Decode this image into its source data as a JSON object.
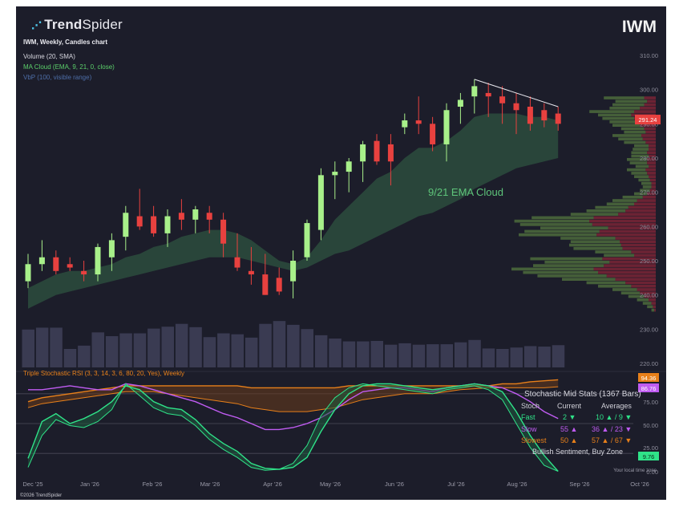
{
  "brand": {
    "name_bold": "Trend",
    "name_light": "Spider"
  },
  "ticker": "IWM",
  "chart_info": "IWM, Weekly, Candles chart",
  "indicators": {
    "volume": "Volume (20, SMA)",
    "ma_cloud": "MA Cloud (EMA, 9, 21, 0, close)",
    "vbp": "VbP (100, visible range)",
    "ma_cloud_label": "9/21 EMA Cloud",
    "stoch_title": "Triple Stochastic RSI (3, 3, 14, 3, 6, 80, 20, Yes), Weekly"
  },
  "colors": {
    "up": "#a8f08a",
    "down": "#e8413f",
    "cloud": "#2b4a3c",
    "fast": "#2fe389",
    "slow": "#c05cf2",
    "slowest": "#e8801a",
    "background": "#1c1d2a"
  },
  "price_axis": {
    "ticks": [
      "310.00",
      "300.00",
      "290.00",
      "280.00",
      "270.00",
      "260.00",
      "250.00",
      "240.00",
      "230.00",
      "220.00"
    ],
    "last_price": "291.24"
  },
  "stoch_axis": {
    "ticks": [
      "75.00",
      "50.00",
      "25.00",
      "0.00"
    ],
    "badges": [
      "94.36",
      "86.76",
      "9.76"
    ]
  },
  "time_axis": [
    "Dec '25",
    "Jan '26",
    "Feb '26",
    "Mar '26",
    "Apr '26",
    "May '26",
    "Jun '26",
    "Jul '26",
    "Aug '26",
    "Sep '26",
    "Oct '26"
  ],
  "stats": {
    "title": "Stochastic Mid Stats (1367 Bars)",
    "headers": [
      "Stoch",
      "Current",
      "Averages"
    ],
    "rows": [
      {
        "name": "Fast",
        "current": "2 ▼",
        "averages": "10 ▲ / 9 ▼"
      },
      {
        "name": "Slow",
        "current": "55 ▲",
        "averages": "36 ▲ / 23 ▼"
      },
      {
        "name": "Slowest",
        "current": "50 ▲",
        "averages": "57 ▲ / 67 ▼"
      }
    ],
    "sentiment": "Bullish Sentiment, Buy Zone"
  },
  "local_time": "Your local time zone",
  "copyright": "©2026 TrendSpider",
  "chart_data": {
    "type": "candlestick",
    "title": "IWM",
    "ylim": [
      218,
      314
    ],
    "candles": [
      {
        "o": 244,
        "h": 252,
        "l": 242,
        "c": 249
      },
      {
        "o": 249,
        "h": 256,
        "l": 247,
        "c": 251
      },
      {
        "o": 251,
        "h": 253,
        "l": 246,
        "c": 247
      },
      {
        "o": 249,
        "h": 251,
        "l": 247,
        "c": 248
      },
      {
        "o": 247,
        "h": 250,
        "l": 244,
        "c": 246
      },
      {
        "o": 246,
        "h": 255,
        "l": 244,
        "c": 254
      },
      {
        "o": 251,
        "h": 258,
        "l": 247,
        "c": 256
      },
      {
        "o": 257,
        "h": 266,
        "l": 253,
        "c": 264
      },
      {
        "o": 263,
        "h": 271,
        "l": 259,
        "c": 260
      },
      {
        "o": 263,
        "h": 266,
        "l": 257,
        "c": 258
      },
      {
        "o": 258,
        "h": 265,
        "l": 254,
        "c": 263
      },
      {
        "o": 264,
        "h": 268,
        "l": 259,
        "c": 262
      },
      {
        "o": 262,
        "h": 266,
        "l": 258,
        "c": 265
      },
      {
        "o": 264,
        "h": 266,
        "l": 258,
        "c": 262
      },
      {
        "o": 262,
        "h": 264,
        "l": 251,
        "c": 255
      },
      {
        "o": 251,
        "h": 258,
        "l": 247,
        "c": 248
      },
      {
        "o": 247,
        "h": 254,
        "l": 243,
        "c": 246
      },
      {
        "o": 246,
        "h": 252,
        "l": 240,
        "c": 240
      },
      {
        "o": 245,
        "h": 248,
        "l": 240,
        "c": 241
      },
      {
        "o": 244,
        "h": 253,
        "l": 239,
        "c": 250
      },
      {
        "o": 251,
        "h": 262,
        "l": 250,
        "c": 261
      },
      {
        "o": 259,
        "h": 277,
        "l": 256,
        "c": 275
      },
      {
        "o": 275,
        "h": 279,
        "l": 268,
        "c": 276
      },
      {
        "o": 276,
        "h": 280,
        "l": 270,
        "c": 279
      },
      {
        "o": 279,
        "h": 285,
        "l": 273,
        "c": 284
      },
      {
        "o": 285,
        "h": 287,
        "l": 278,
        "c": 279
      },
      {
        "o": 284,
        "h": 287,
        "l": 272,
        "c": 279
      },
      {
        "o": 289,
        "h": 293,
        "l": 287,
        "c": 291
      },
      {
        "o": 291,
        "h": 298,
        "l": 287,
        "c": 290
      },
      {
        "o": 290,
        "h": 292,
        "l": 282,
        "c": 284
      },
      {
        "o": 284,
        "h": 296,
        "l": 279,
        "c": 294
      },
      {
        "o": 295,
        "h": 299,
        "l": 290,
        "c": 297
      },
      {
        "o": 298,
        "h": 303,
        "l": 293,
        "c": 301
      },
      {
        "o": 299,
        "h": 302,
        "l": 292,
        "c": 298
      },
      {
        "o": 298,
        "h": 301,
        "l": 290,
        "c": 296
      },
      {
        "o": 296,
        "h": 299,
        "l": 287,
        "c": 294
      },
      {
        "o": 295,
        "h": 298,
        "l": 288,
        "c": 290
      },
      {
        "o": 294,
        "h": 296,
        "l": 289,
        "c": 291
      },
      {
        "o": 293,
        "h": 295,
        "l": 288,
        "c": 290
      }
    ],
    "trendline": [
      [
        32,
        303
      ],
      [
        38,
        295
      ]
    ],
    "ema9": [
      242,
      244,
      246,
      247,
      247,
      248,
      249,
      251,
      252,
      254,
      255,
      257,
      258,
      259,
      259,
      258,
      256,
      253,
      250,
      249,
      251,
      256,
      262,
      266,
      270,
      274,
      276,
      280,
      283,
      283,
      285,
      288,
      292,
      293,
      293,
      293,
      292,
      292,
      291
    ],
    "ema21": [
      236,
      238,
      240,
      241,
      242,
      243,
      244,
      245,
      246,
      247,
      248,
      249,
      250,
      251,
      251,
      251,
      250,
      249,
      248,
      247,
      248,
      250,
      252,
      253,
      255,
      257,
      259,
      261,
      263,
      264,
      266,
      268,
      271,
      273,
      275,
      277,
      278,
      279,
      280
    ],
    "volume": [
      80,
      84,
      84,
      39,
      46,
      74,
      66,
      72,
      72,
      82,
      86,
      92,
      85,
      64,
      72,
      70,
      63,
      92,
      98,
      90,
      81,
      68,
      61,
      55,
      55,
      56,
      48,
      51,
      48,
      49,
      49,
      53,
      58,
      40,
      39,
      42,
      45,
      44,
      47
    ],
    "vbp": [
      {
        "price": 297.5,
        "total": 72,
        "down": 16
      },
      {
        "price": 296.5,
        "total": 56,
        "down": 12
      },
      {
        "price": 295.5,
        "total": 60,
        "down": 16
      },
      {
        "price": 294.5,
        "total": 64,
        "down": 22
      },
      {
        "price": 293.5,
        "total": 92,
        "down": 30
      },
      {
        "price": 292.5,
        "total": 80,
        "down": 34
      },
      {
        "price": 291.5,
        "total": 74,
        "down": 30
      },
      {
        "price": 290.5,
        "total": 64,
        "down": 24
      },
      {
        "price": 289.5,
        "total": 60,
        "down": 22
      },
      {
        "price": 288.5,
        "total": 48,
        "down": 16
      },
      {
        "price": 287.5,
        "total": 44,
        "down": 14
      },
      {
        "price": 286.5,
        "total": 60,
        "down": 20
      },
      {
        "price": 285.5,
        "total": 52,
        "down": 18
      },
      {
        "price": 284.5,
        "total": 44,
        "down": 14
      },
      {
        "price": 283.5,
        "total": 30,
        "down": 10
      },
      {
        "price": 282.5,
        "total": 32,
        "down": 10
      },
      {
        "price": 281.5,
        "total": 34,
        "down": 12
      },
      {
        "price": 280.5,
        "total": 34,
        "down": 10
      },
      {
        "price": 279.5,
        "total": 40,
        "down": 12
      },
      {
        "price": 278.5,
        "total": 36,
        "down": 12
      },
      {
        "price": 277.5,
        "total": 28,
        "down": 10
      },
      {
        "price": 276.5,
        "total": 40,
        "down": 14
      },
      {
        "price": 275.5,
        "total": 34,
        "down": 12
      },
      {
        "price": 274.5,
        "total": 30,
        "down": 10
      },
      {
        "price": 273.5,
        "total": 24,
        "down": 8
      },
      {
        "price": 272.5,
        "total": 20,
        "down": 6
      },
      {
        "price": 271.5,
        "total": 18,
        "down": 6
      },
      {
        "price": 270.5,
        "total": 22,
        "down": 8
      },
      {
        "price": 269.5,
        "total": 30,
        "down": 12
      },
      {
        "price": 268.5,
        "total": 46,
        "down": 18
      },
      {
        "price": 267.5,
        "total": 60,
        "down": 26
      },
      {
        "price": 266.5,
        "total": 68,
        "down": 30
      },
      {
        "price": 265.5,
        "total": 84,
        "down": 38
      },
      {
        "price": 264.5,
        "total": 96,
        "down": 42
      },
      {
        "price": 263.5,
        "total": 118,
        "down": 52
      },
      {
        "price": 262.5,
        "total": 172,
        "down": 86
      },
      {
        "price": 261.5,
        "total": 196,
        "down": 92
      },
      {
        "price": 260.5,
        "total": 188,
        "down": 88
      },
      {
        "price": 259.5,
        "total": 160,
        "down": 66
      },
      {
        "price": 258.5,
        "total": 182,
        "down": 78
      },
      {
        "price": 257.5,
        "total": 190,
        "down": 82
      },
      {
        "price": 256.5,
        "total": 132,
        "down": 56
      },
      {
        "price": 255.5,
        "total": 118,
        "down": 50
      },
      {
        "price": 254.5,
        "total": 120,
        "down": 48
      },
      {
        "price": 253.5,
        "total": 114,
        "down": 46
      },
      {
        "price": 252.5,
        "total": 84,
        "down": 34
      },
      {
        "price": 251.5,
        "total": 72,
        "down": 30
      },
      {
        "price": 250.5,
        "total": 174,
        "down": 74
      },
      {
        "price": 249.5,
        "total": 154,
        "down": 64
      },
      {
        "price": 248.5,
        "total": 170,
        "down": 72
      },
      {
        "price": 247.5,
        "total": 200,
        "down": 86
      },
      {
        "price": 246.5,
        "total": 184,
        "down": 80
      },
      {
        "price": 245.5,
        "total": 164,
        "down": 68
      },
      {
        "price": 244.5,
        "total": 130,
        "down": 56
      },
      {
        "price": 243.5,
        "total": 96,
        "down": 42
      },
      {
        "price": 242.5,
        "total": 80,
        "down": 34
      },
      {
        "price": 241.5,
        "total": 60,
        "down": 26
      },
      {
        "price": 240.5,
        "total": 48,
        "down": 22
      },
      {
        "price": 239.5,
        "total": 38,
        "down": 16
      },
      {
        "price": 238.5,
        "total": 26,
        "down": 10
      },
      {
        "price": 237.5,
        "total": 18,
        "down": 6
      },
      {
        "price": 236.5,
        "total": 12,
        "down": 4
      },
      {
        "price": 235.5,
        "total": 6,
        "down": 2
      }
    ],
    "stoch": {
      "ylim": [
        0,
        100
      ],
      "fast_a": [
        15,
        52,
        60,
        50,
        55,
        62,
        72,
        88,
        84,
        72,
        66,
        64,
        54,
        40,
        30,
        22,
        10,
        5,
        4,
        6,
        16,
        42,
        64,
        80,
        88,
        90,
        90,
        88,
        86,
        84,
        86,
        88,
        90,
        88,
        82,
        62,
        38,
        18,
        2
      ],
      "fast_b": [
        6,
        38,
        54,
        48,
        46,
        52,
        64,
        90,
        78,
        66,
        60,
        58,
        48,
        34,
        24,
        16,
        6,
        3,
        4,
        10,
        28,
        58,
        76,
        86,
        90,
        88,
        86,
        84,
        82,
        80,
        84,
        86,
        88,
        84,
        74,
        50,
        26,
        8,
        2
      ],
      "slow": [
        84,
        84,
        86,
        88,
        86,
        84,
        84,
        90,
        88,
        84,
        80,
        76,
        72,
        66,
        60,
        56,
        50,
        44,
        44,
        46,
        50,
        56,
        64,
        74,
        82,
        84,
        86,
        86,
        84,
        82,
        86,
        88,
        90,
        88,
        86,
        80,
        72,
        62,
        55
      ],
      "slowest_a": [
        72,
        76,
        78,
        80,
        82,
        84,
        86,
        88,
        88,
        88,
        88,
        88,
        88,
        88,
        88,
        88,
        86,
        86,
        86,
        86,
        86,
        86,
        86,
        88,
        88,
        88,
        88,
        88,
        88,
        88,
        88,
        88,
        88,
        88,
        90,
        90,
        92,
        93,
        94
      ],
      "slowest_b": [
        66,
        70,
        72,
        74,
        76,
        78,
        80,
        82,
        82,
        82,
        80,
        78,
        76,
        74,
        72,
        70,
        66,
        64,
        62,
        62,
        62,
        64,
        66,
        70,
        74,
        76,
        78,
        80,
        80,
        80,
        82,
        84,
        85,
        86,
        86,
        86,
        86,
        86,
        87
      ]
    }
  }
}
